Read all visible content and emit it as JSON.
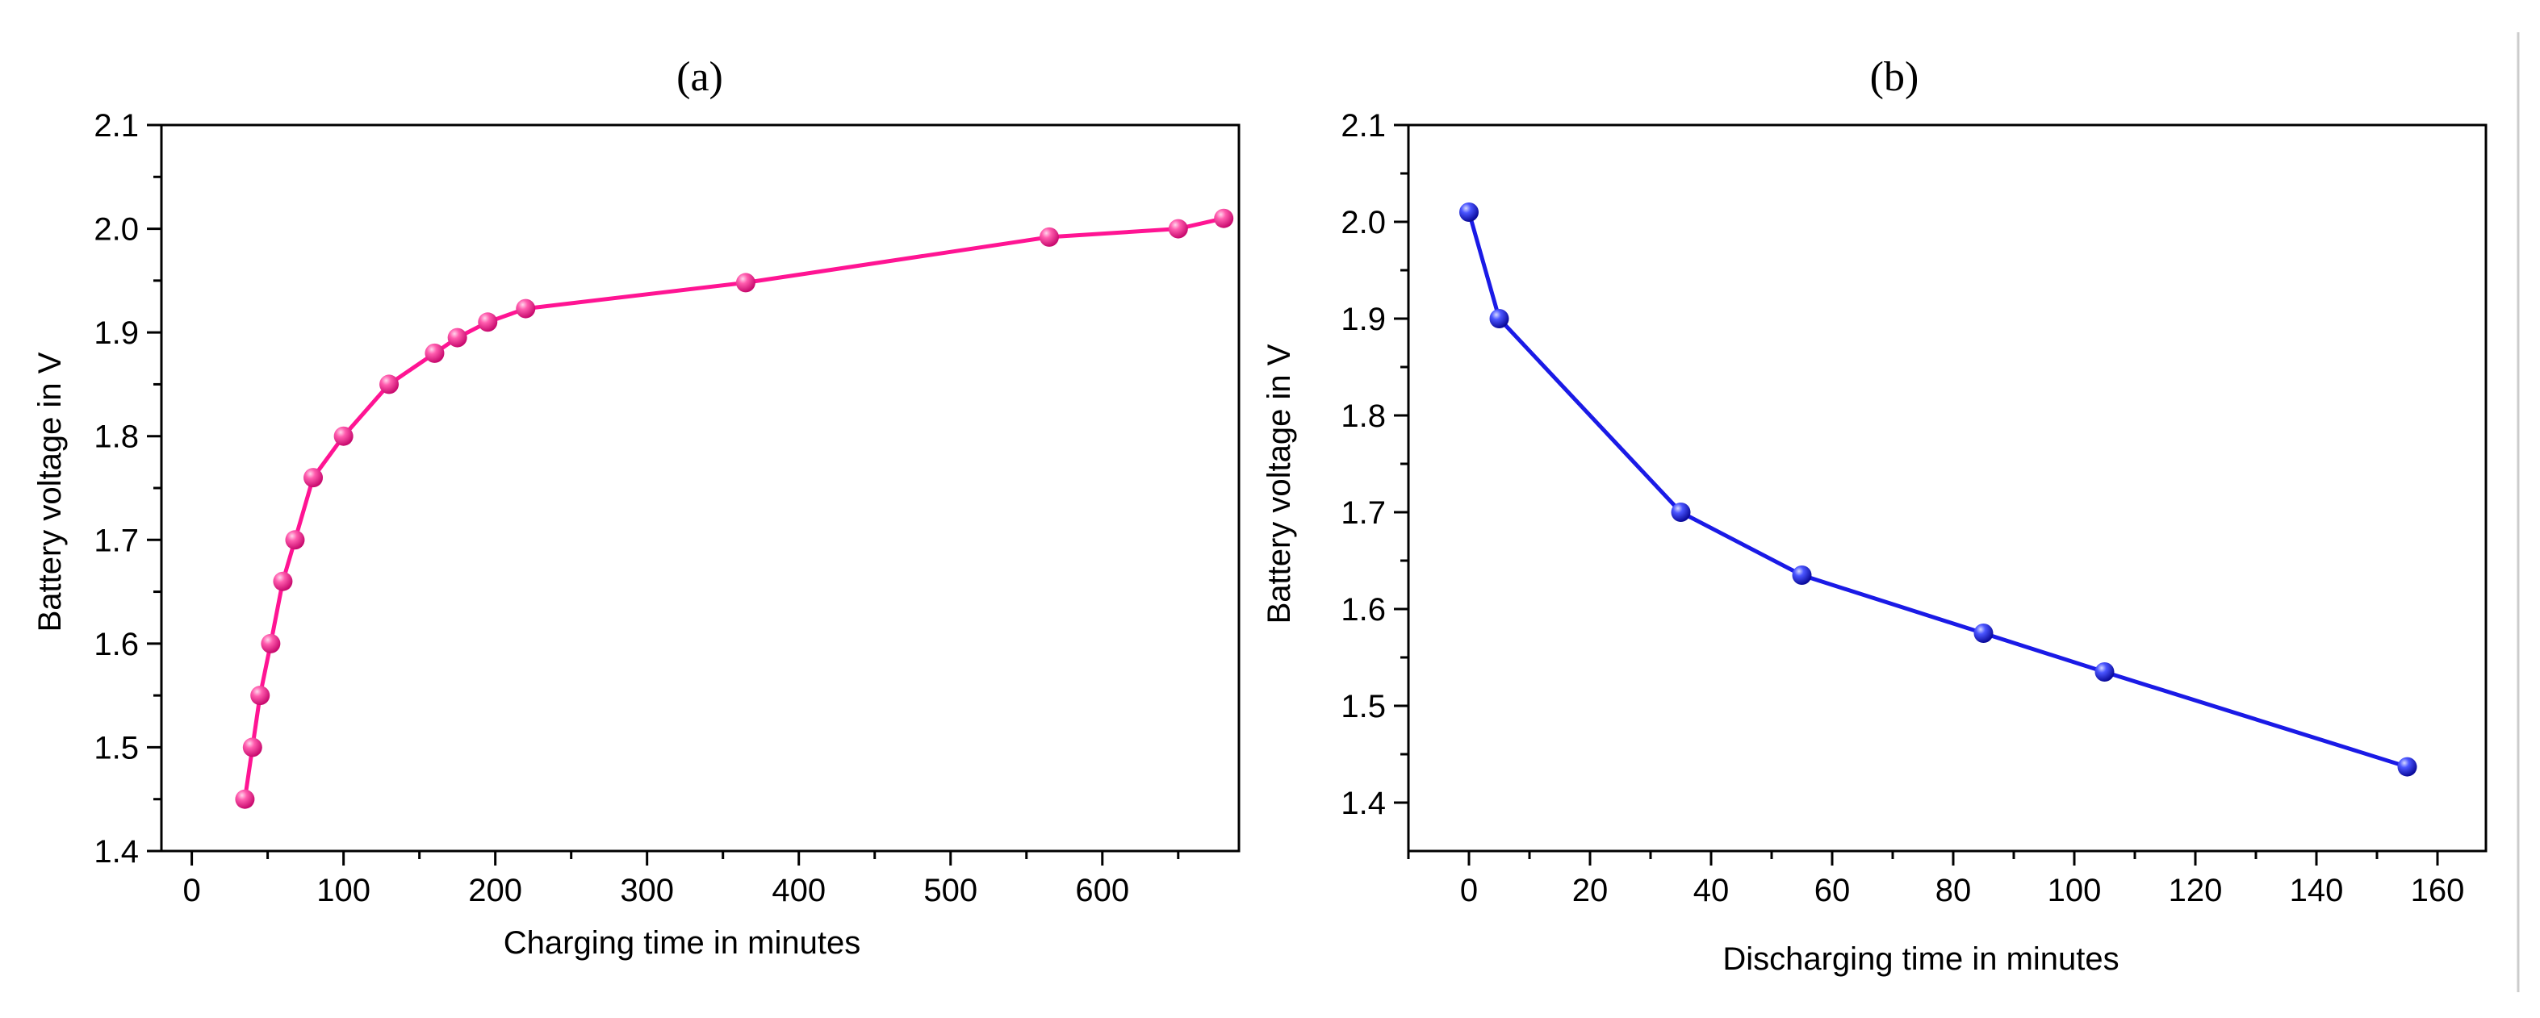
{
  "chart_data": [
    {
      "type": "line",
      "panel_label": "(a)",
      "xlabel": "Charging time in minutes",
      "ylabel": "Battery voltage in V",
      "xlim": [
        -20,
        690
      ],
      "ylim": [
        1.4,
        2.1
      ],
      "xticks": [
        "0",
        "100",
        "200",
        "300",
        "400",
        "500",
        "600"
      ],
      "yticks": [
        "1.4",
        "1.5",
        "1.6",
        "1.7",
        "1.8",
        "1.9",
        "2.0",
        "2.1"
      ],
      "grid": false,
      "series": [
        {
          "name": "Charging",
          "color": "#ff1493",
          "x": [
            35,
            40,
            45,
            52,
            60,
            68,
            80,
            100,
            130,
            160,
            175,
            195,
            220,
            365,
            565,
            650,
            680
          ],
          "y": [
            1.45,
            1.5,
            1.55,
            1.6,
            1.66,
            1.7,
            1.76,
            1.8,
            1.85,
            1.88,
            1.895,
            1.91,
            1.923,
            1.948,
            1.992,
            2.0,
            2.01
          ]
        }
      ]
    },
    {
      "type": "line",
      "panel_label": "(b)",
      "xlabel": "Discharging time in minutes",
      "ylabel": "Battery voltage in V",
      "xlim": [
        -10,
        168
      ],
      "ylim": [
        1.35,
        2.1
      ],
      "xticks": [
        "0",
        "20",
        "40",
        "60",
        "80",
        "100",
        "120",
        "140",
        "160"
      ],
      "yticks": [
        "1.4",
        "1.5",
        "1.6",
        "1.7",
        "1.8",
        "1.9",
        "2.0",
        "2.1"
      ],
      "grid": false,
      "series": [
        {
          "name": "Discharging",
          "color": "#1a1ae6",
          "x": [
            0,
            5,
            35,
            55,
            85,
            105,
            155
          ],
          "y": [
            2.01,
            1.9,
            1.7,
            1.635,
            1.575,
            1.535,
            1.437
          ]
        }
      ]
    }
  ]
}
